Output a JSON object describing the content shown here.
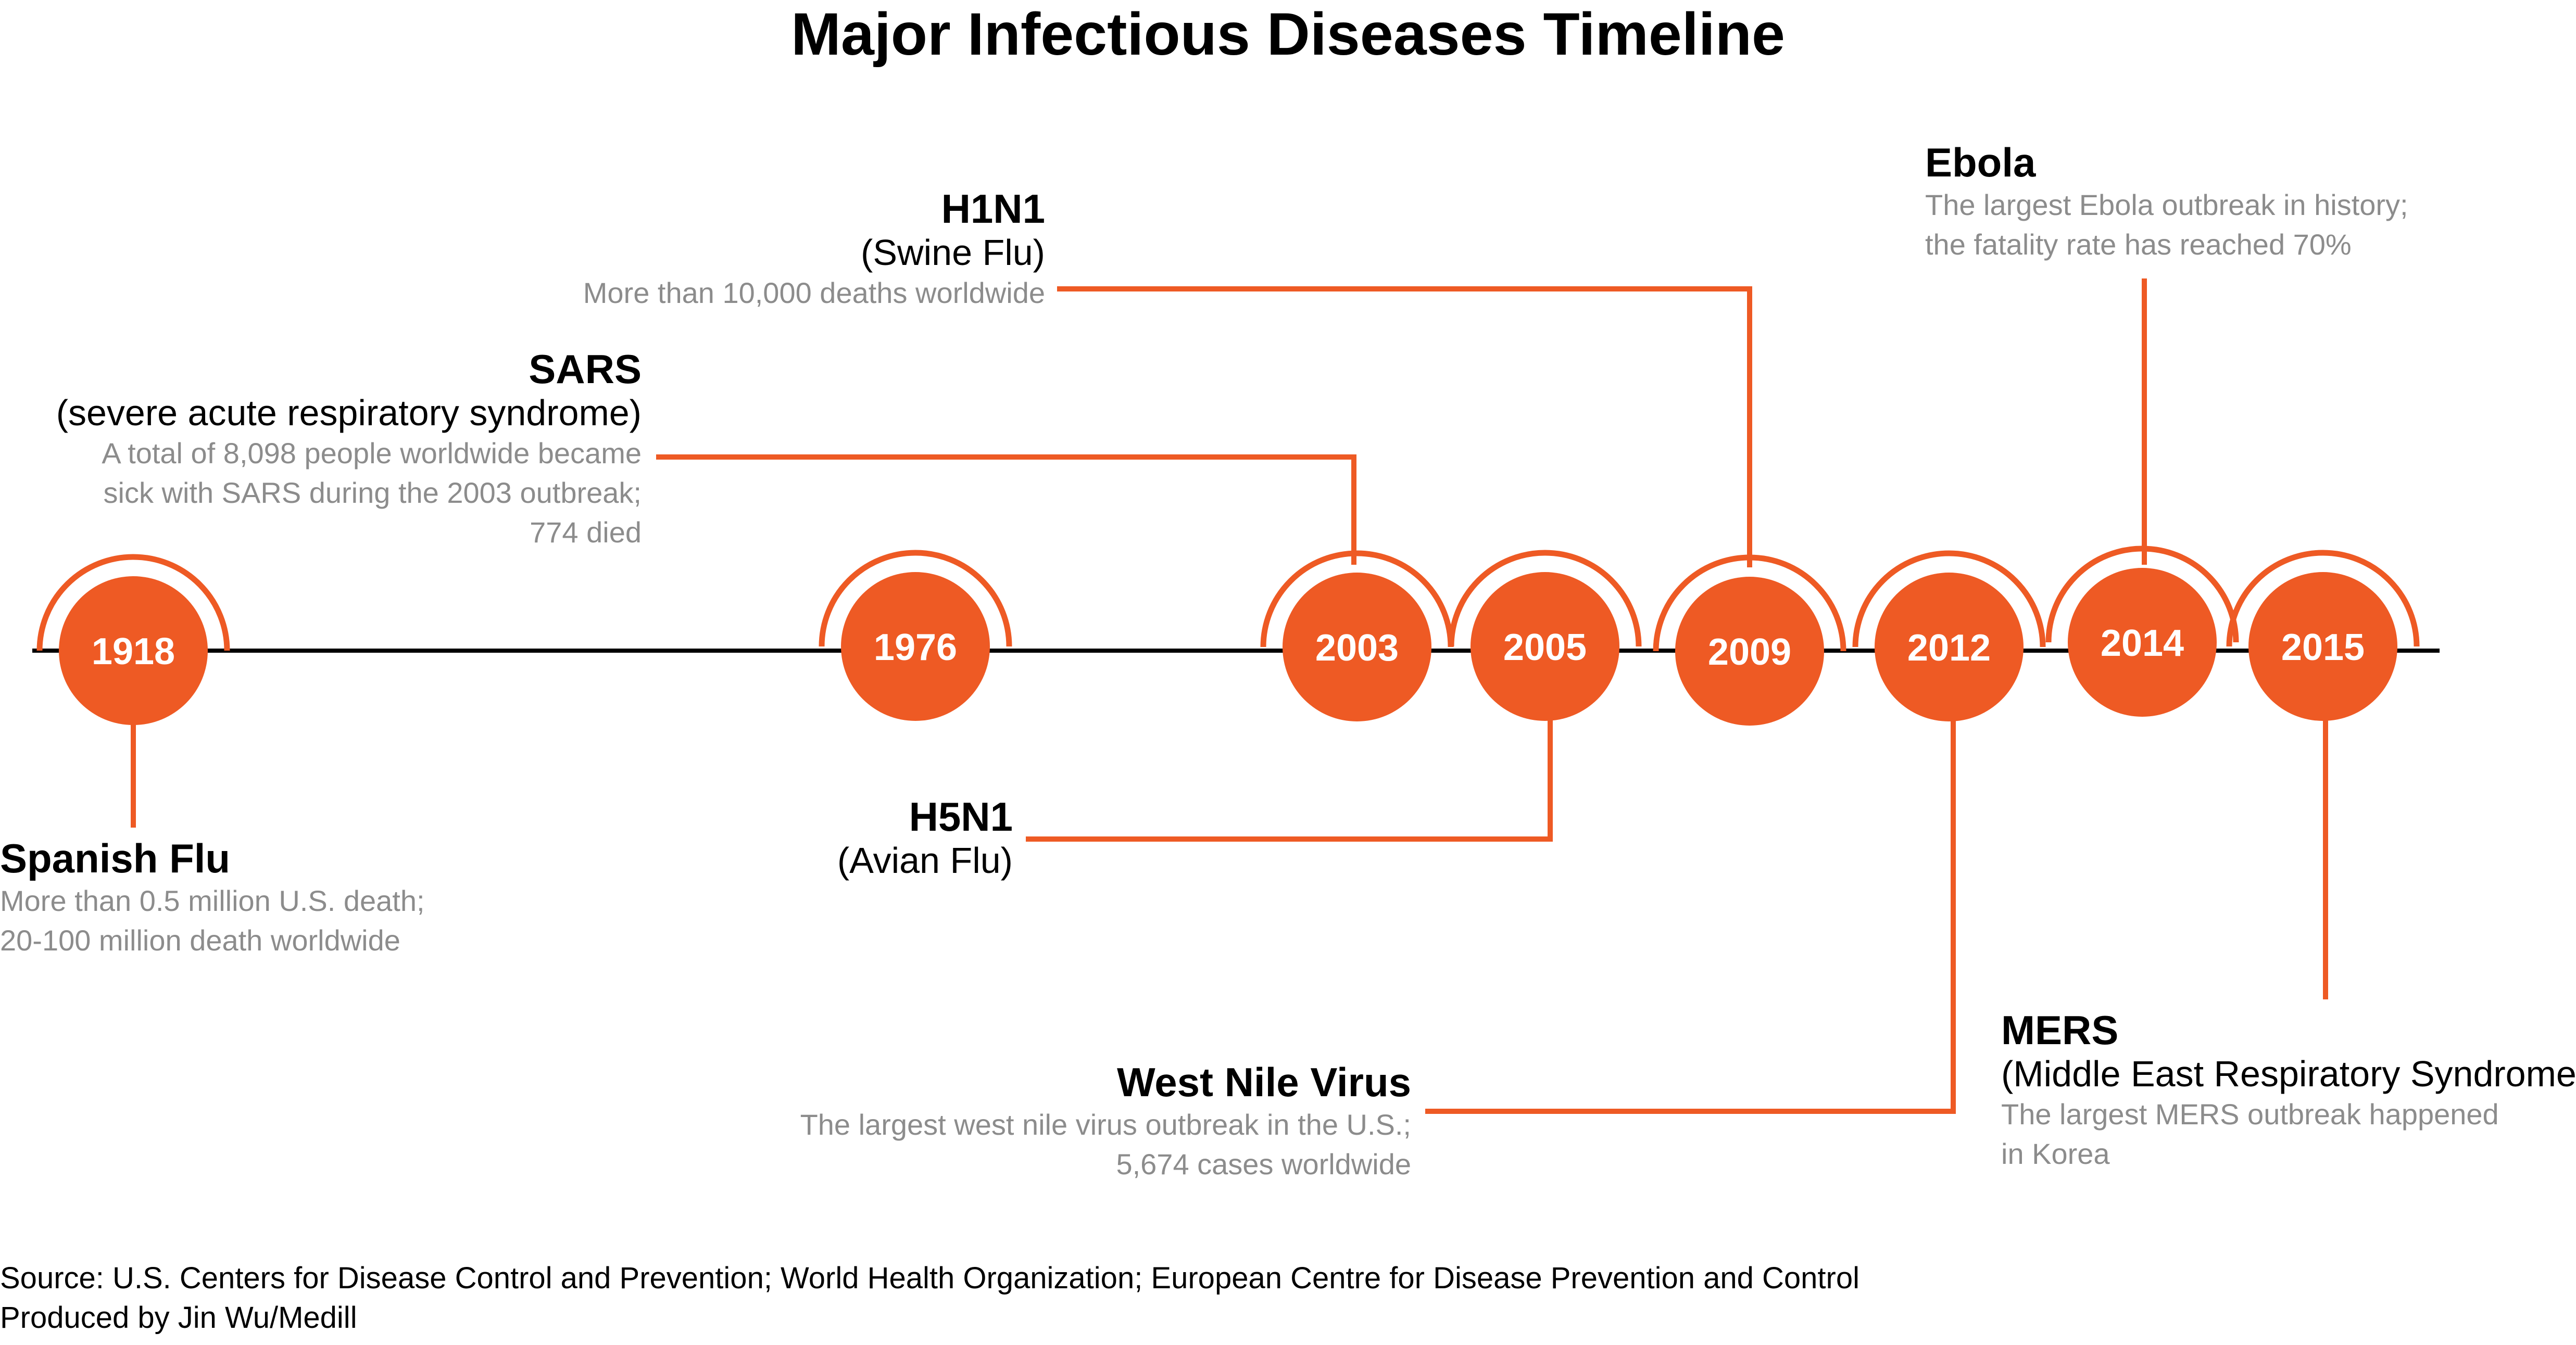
{
  "title": "Major Infectious Diseases Timeline",
  "colors": {
    "accent": "#EE5A24",
    "axis": "#000000",
    "muted": "#8c8c8c"
  },
  "years": [
    "1918",
    "1976",
    "2003",
    "2005",
    "2009",
    "2012",
    "2014",
    "2015"
  ],
  "events": {
    "spanish_flu": {
      "name": "Spanish Flu",
      "desc": [
        "More than 0.5 million U.S. death;",
        "20-100 million death worldwide"
      ]
    },
    "h5n1": {
      "name": "H5N1",
      "sub": "(Avian Flu)"
    },
    "sars": {
      "name": "SARS",
      "sub": "(severe acute respiratory syndrome)",
      "desc": [
        "A total of 8,098 people worldwide became",
        "sick with SARS during the 2003 outbreak;",
        "774 died"
      ]
    },
    "h1n1": {
      "name": "H1N1",
      "sub": "(Swine Flu)",
      "desc": [
        "More than 10,000 deaths worldwide"
      ]
    },
    "west_nile": {
      "name": "West Nile Virus",
      "desc": [
        "The largest west nile virus outbreak in the U.S.;",
        "5,674 cases worldwide"
      ]
    },
    "ebola": {
      "name": "Ebola",
      "desc": [
        "The largest Ebola outbreak in history;",
        "the fatality rate has reached 70%"
      ]
    },
    "mers": {
      "name": "MERS",
      "sub": "(Middle East Respiratory Syndrome )",
      "desc": [
        "The largest MERS outbreak happened",
        "in Korea"
      ]
    }
  },
  "footer": {
    "source": "Source: U.S. Centers for Disease Control and Prevention; World Health Organization; European Centre for Disease Prevention and Control",
    "credit": "Produced by Jin Wu/Medill"
  }
}
